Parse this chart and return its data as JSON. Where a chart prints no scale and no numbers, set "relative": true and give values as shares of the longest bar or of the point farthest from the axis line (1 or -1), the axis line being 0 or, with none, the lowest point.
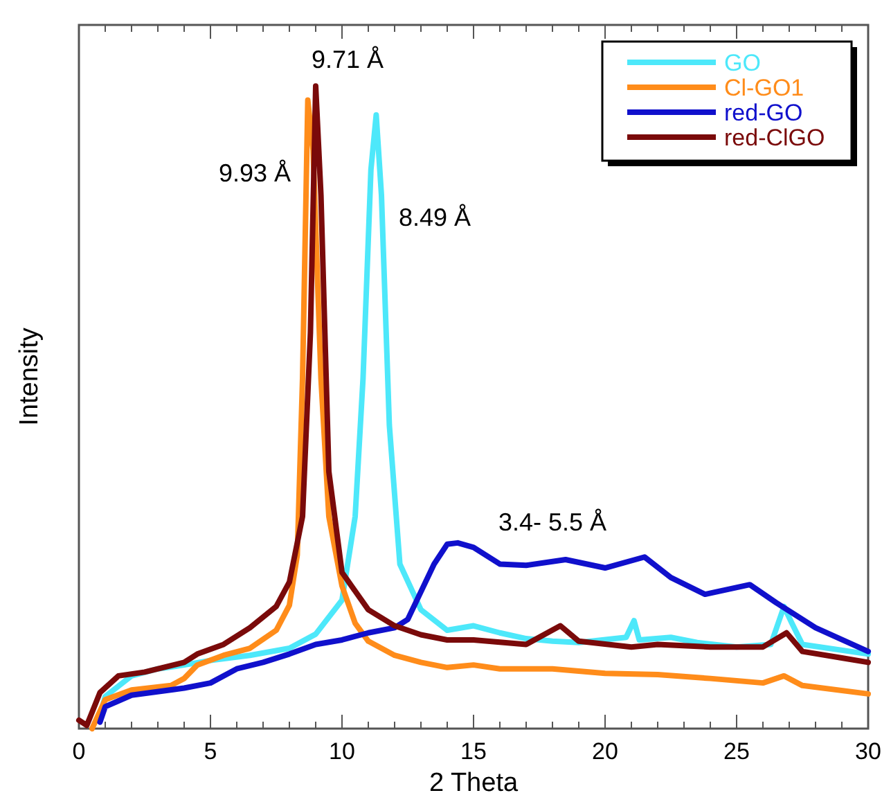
{
  "chart_data": {
    "type": "line",
    "relative": true,
    "xlabel": "2 Theta",
    "ylabel": "Intensity",
    "xlim": [
      0,
      30
    ],
    "xticks": [
      0,
      5,
      10,
      15,
      20,
      25,
      30
    ],
    "legend": "top right",
    "line_style": "solid",
    "grid": false,
    "series": [
      {
        "name": "GO",
        "color": "#4de8fa",
        "x": [
          0.8,
          1,
          2,
          3,
          4,
          5,
          6.5,
          8,
          9,
          10,
          10.5,
          10.8,
          11.1,
          11.3,
          11.5,
          11.8,
          12.2,
          13,
          14,
          15,
          16,
          17,
          18,
          19,
          20.8,
          21.1,
          21.3,
          22.5,
          23.5,
          25,
          26.3,
          26.8,
          27.1,
          27.5,
          30
        ],
        "values": [
          0.02,
          0.05,
          0.082,
          0.093,
          0.099,
          0.106,
          0.114,
          0.125,
          0.147,
          0.2,
          0.33,
          0.545,
          0.87,
          0.955,
          0.83,
          0.472,
          0.256,
          0.185,
          0.153,
          0.16,
          0.149,
          0.14,
          0.136,
          0.134,
          0.142,
          0.168,
          0.138,
          0.142,
          0.134,
          0.127,
          0.131,
          0.19,
          0.164,
          0.131,
          0.116
        ]
      },
      {
        "name": "Cl-GO1",
        "color": "#ff8c1a",
        "x": [
          0.5,
          1,
          2,
          3.5,
          4,
          4.5,
          5.5,
          6.5,
          7.5,
          8,
          8.3,
          8.5,
          8.7,
          8.9,
          9.2,
          9.5,
          10,
          10.5,
          11,
          12,
          13,
          14,
          15,
          16,
          18,
          20,
          22,
          24,
          26,
          26.8,
          27.5,
          30
        ],
        "values": [
          0,
          0.045,
          0.06,
          0.067,
          0.078,
          0.099,
          0.114,
          0.125,
          0.153,
          0.192,
          0.27,
          0.545,
          0.978,
          0.9,
          0.545,
          0.33,
          0.222,
          0.164,
          0.136,
          0.114,
          0.103,
          0.095,
          0.099,
          0.093,
          0.093,
          0.086,
          0.084,
          0.078,
          0.071,
          0.082,
          0.067,
          0.054
        ]
      },
      {
        "name": "red-GO",
        "color": "#1010cc",
        "x": [
          0.8,
          1,
          2,
          4,
          5,
          6,
          7,
          8,
          9,
          10,
          11,
          12,
          12.5,
          13,
          13.5,
          14,
          14.4,
          15,
          16,
          17,
          18.5,
          20,
          21.5,
          22.5,
          23.8,
          25.5,
          26.5,
          28,
          30
        ],
        "values": [
          0.01,
          0.034,
          0.052,
          0.063,
          0.071,
          0.093,
          0.103,
          0.116,
          0.131,
          0.138,
          0.149,
          0.157,
          0.17,
          0.213,
          0.256,
          0.287,
          0.289,
          0.282,
          0.256,
          0.254,
          0.263,
          0.25,
          0.267,
          0.235,
          0.209,
          0.224,
          0.196,
          0.157,
          0.12
        ]
      },
      {
        "name": "red-ClGO",
        "color": "#7a0a0a",
        "x": [
          0,
          0.3,
          0.8,
          1.5,
          2.5,
          4,
          4.5,
          5.5,
          6.5,
          7.5,
          8,
          8.5,
          8.8,
          9,
          9.2,
          9.5,
          10,
          11,
          12,
          13,
          14,
          15,
          17,
          18.3,
          19,
          21,
          22,
          24,
          26,
          26.9,
          27.5,
          29,
          30
        ],
        "values": [
          0.013,
          0.005,
          0.056,
          0.082,
          0.088,
          0.103,
          0.116,
          0.131,
          0.157,
          0.19,
          0.228,
          0.33,
          0.616,
          1,
          0.83,
          0.4,
          0.243,
          0.185,
          0.16,
          0.146,
          0.138,
          0.138,
          0.131,
          0.16,
          0.136,
          0.127,
          0.131,
          0.127,
          0.127,
          0.149,
          0.12,
          0.11,
          0.103
        ]
      }
    ],
    "annotations": [
      "9.71 Å",
      "9.93 Å",
      "8.49 Å",
      "3.4- 5.5 Å"
    ]
  }
}
